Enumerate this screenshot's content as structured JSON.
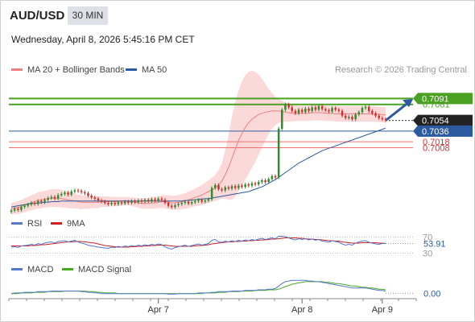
{
  "header": {
    "symbol": "AUD/USD",
    "timeframe": "30 MIN",
    "datetime": "Wednesday, April 8, 2026 5:45:16 PM CET"
  },
  "legend_main": [
    {
      "label": "MA 20 + Bollinger Bands",
      "color": "#f08080"
    },
    {
      "label": "MA 50",
      "color": "#2c5aa0"
    }
  ],
  "research": "Research © 2026 Trading Central",
  "legend_rsi": [
    {
      "label": "RSI",
      "color": "#5577cc"
    },
    {
      "label": "9MA",
      "color": "#cc2222"
    }
  ],
  "legend_macd": [
    {
      "label": "MACD",
      "color": "#5577cc"
    },
    {
      "label": "MACD Signal",
      "color": "#44aa22"
    }
  ],
  "colors": {
    "up": "#2e8b2e",
    "down": "#d03030",
    "bollinger_fill": "#fbd0d0",
    "resistance": "#4aa020",
    "support": "#f07070",
    "pivot": "#2c5aa0",
    "arrow": "#2c5aa0"
  },
  "chart_data": [
    {
      "type": "candlestick",
      "panel": "price",
      "x_labels": [
        "Apr 7",
        "Apr 8",
        "Apr 9"
      ],
      "ylim": [
        0.69,
        0.712
      ],
      "levels": [
        {
          "label": "0.7091",
          "value": 0.7091,
          "style": "resistance",
          "tag": true
        },
        {
          "label": "0.7081",
          "value": 0.7081,
          "style": "resistance",
          "tag": false
        },
        {
          "label": "0.7054",
          "value": 0.7054,
          "style": "current",
          "tag": true
        },
        {
          "label": "0.7036",
          "value": 0.7036,
          "style": "pivot",
          "tag": true
        },
        {
          "label": "0.7018",
          "value": 0.7018,
          "style": "support",
          "tag": false
        },
        {
          "label": "0.7008",
          "value": 0.7008,
          "style": "support",
          "tag": false
        }
      ],
      "closes": [
        0.6902,
        0.6905,
        0.6903,
        0.6908,
        0.691,
        0.6912,
        0.6915,
        0.6913,
        0.6918,
        0.6916,
        0.692,
        0.6923,
        0.6925,
        0.6922,
        0.6928,
        0.693,
        0.6932,
        0.6929,
        0.6934,
        0.6936,
        0.6935,
        0.6933,
        0.6931,
        0.6927,
        0.6924,
        0.6922,
        0.6919,
        0.6917,
        0.6915,
        0.6913,
        0.6915,
        0.6913,
        0.6916,
        0.6914,
        0.6917,
        0.6915,
        0.6918,
        0.6916,
        0.6919,
        0.6917,
        0.692,
        0.6918,
        0.6921,
        0.6919,
        0.6922,
        0.692,
        0.6915,
        0.691,
        0.6908,
        0.6911,
        0.6913,
        0.6915,
        0.6917,
        0.6914,
        0.6916,
        0.6918,
        0.692,
        0.6917,
        0.6919,
        0.6921,
        0.694,
        0.6945,
        0.6938,
        0.6936,
        0.6941,
        0.6939,
        0.6943,
        0.694,
        0.6944,
        0.6942,
        0.6946,
        0.6944,
        0.6948,
        0.6946,
        0.695,
        0.6953,
        0.695,
        0.6955,
        0.696,
        0.6958,
        0.704,
        0.7072,
        0.7081,
        0.7076,
        0.707,
        0.7066,
        0.7072,
        0.7068,
        0.7074,
        0.707,
        0.7076,
        0.7072,
        0.7078,
        0.7073,
        0.7071,
        0.7069,
        0.7075,
        0.7072,
        0.707,
        0.7062,
        0.7058,
        0.706,
        0.7056,
        0.7064,
        0.7068,
        0.7075,
        0.7077,
        0.707,
        0.7066,
        0.7062,
        0.7058,
        0.7056,
        0.7054
      ],
      "ma20": [
        0.6905,
        0.6906,
        0.6907,
        0.6909,
        0.6911,
        0.6913,
        0.6915,
        0.6917,
        0.6919,
        0.692,
        0.6921,
        0.6922,
        0.6923,
        0.6923,
        0.6923,
        0.6922,
        0.6921,
        0.692,
        0.6919,
        0.6918,
        0.6917,
        0.6916,
        0.6916,
        0.6916,
        0.6916,
        0.6916,
        0.6916,
        0.6917,
        0.6917,
        0.6917,
        0.6917,
        0.6917,
        0.6917,
        0.6918,
        0.6918,
        0.6918,
        0.6917,
        0.6916,
        0.6915,
        0.6914,
        0.6914,
        0.6914,
        0.6915,
        0.6915,
        0.6916,
        0.6917,
        0.6917,
        0.6916,
        0.6915,
        0.6915,
        0.6916,
        0.6917,
        0.6918,
        0.692,
        0.6922,
        0.6924,
        0.6926,
        0.6928,
        0.6931,
        0.6934,
        0.6937,
        0.694,
        0.6945,
        0.6952,
        0.6962,
        0.6975,
        0.699,
        0.7005,
        0.702,
        0.7032,
        0.7042,
        0.705,
        0.7056,
        0.706,
        0.7064,
        0.7066,
        0.7068,
        0.7069,
        0.707,
        0.707,
        0.707,
        0.7069,
        0.7068,
        0.7067,
        0.7066,
        0.7066,
        0.7066,
        0.7066,
        0.7066,
        0.7066,
        0.7067,
        0.7067,
        0.7067,
        0.7067,
        0.7066,
        0.7066,
        0.7066,
        0.7065,
        0.7065,
        0.7065,
        0.7065,
        0.7065,
        0.7065,
        0.7065,
        0.7065,
        0.7065,
        0.7065,
        0.7065,
        0.7065,
        0.7065,
        0.7064,
        0.7064,
        0.7063
      ],
      "ma50": [
        0.6908,
        0.6909,
        0.691,
        0.6911,
        0.6912,
        0.6913,
        0.6914,
        0.6914,
        0.6915,
        0.6915,
        0.6916,
        0.6916,
        0.6917,
        0.6917,
        0.6917,
        0.6918,
        0.6918,
        0.6918,
        0.6918,
        0.6918,
        0.6918,
        0.6918,
        0.6918,
        0.6918,
        0.6918,
        0.6918,
        0.6918,
        0.6918,
        0.6918,
        0.6918,
        0.6918,
        0.6918,
        0.6918,
        0.6918,
        0.6918,
        0.6918,
        0.6918,
        0.6918,
        0.6918,
        0.6918,
        0.6918,
        0.6918,
        0.6918,
        0.6918,
        0.6918,
        0.6918,
        0.6918,
        0.6918,
        0.6918,
        0.6918,
        0.6918,
        0.6918,
        0.6919,
        0.6919,
        0.692,
        0.692,
        0.6921,
        0.6921,
        0.6922,
        0.6922,
        0.6923,
        0.6924,
        0.6925,
        0.6926,
        0.6927,
        0.6928,
        0.6929,
        0.693,
        0.6931,
        0.6932,
        0.6933,
        0.6934,
        0.6936,
        0.6938,
        0.694,
        0.6942,
        0.6945,
        0.6948,
        0.6951,
        0.6954,
        0.6958,
        0.6962,
        0.6966,
        0.697,
        0.6974,
        0.6978,
        0.6982,
        0.6985,
        0.6988,
        0.6991,
        0.6994,
        0.6997,
        0.7,
        0.7003,
        0.7005,
        0.7007,
        0.7009,
        0.7011,
        0.7013,
        0.7015,
        0.7017,
        0.7019,
        0.7021,
        0.7023,
        0.7025,
        0.7027,
        0.7029,
        0.7031,
        0.7033,
        0.7035,
        0.7037,
        0.7039,
        0.7041
      ],
      "band_width": [
        0.001,
        0.001,
        0.0011,
        0.0011,
        0.0012,
        0.0012,
        0.0013,
        0.0013,
        0.0014,
        0.0014,
        0.0014,
        0.0015,
        0.0015,
        0.0015,
        0.0015,
        0.0015,
        0.0014,
        0.0014,
        0.0013,
        0.0013,
        0.0012,
        0.0012,
        0.0011,
        0.0011,
        0.001,
        0.001,
        0.001,
        0.0009,
        0.0009,
        0.0009,
        0.0008,
        0.0008,
        0.0008,
        0.0007,
        0.0007,
        0.0007,
        0.0007,
        0.0008,
        0.0008,
        0.0009,
        0.0009,
        0.0009,
        0.001,
        0.001,
        0.001,
        0.0011,
        0.0011,
        0.0012,
        0.0012,
        0.0012,
        0.0012,
        0.0013,
        0.0013,
        0.0014,
        0.0014,
        0.0015,
        0.0016,
        0.0017,
        0.0018,
        0.0019,
        0.002,
        0.0022,
        0.0025,
        0.003,
        0.004,
        0.0055,
        0.007,
        0.008,
        0.0085,
        0.0088,
        0.0088,
        0.0086,
        0.0082,
        0.0076,
        0.0068,
        0.0058,
        0.0048,
        0.0038,
        0.003,
        0.0024,
        0.002,
        0.0018,
        0.0016,
        0.0015,
        0.0014,
        0.0013,
        0.0013,
        0.0013,
        0.0013,
        0.0013,
        0.0013,
        0.0013,
        0.0013,
        0.0013,
        0.0013,
        0.0013,
        0.0013,
        0.0013,
        0.0013,
        0.0013,
        0.0013,
        0.0013,
        0.0013,
        0.0013,
        0.0013,
        0.0013,
        0.0013,
        0.0013,
        0.0013,
        0.0013,
        0.0013,
        0.0013,
        0.0013
      ]
    },
    {
      "type": "line",
      "panel": "rsi",
      "ylim": [
        25,
        75
      ],
      "levels": [
        70,
        30
      ],
      "current_label": "53.91",
      "level_labels": [
        "70",
        "30"
      ],
      "rsi": [
        45,
        46,
        44,
        48,
        49,
        50,
        52,
        50,
        54,
        52,
        55,
        57,
        58,
        55,
        59,
        60,
        61,
        58,
        60,
        62,
        58,
        55,
        53,
        50,
        48,
        47,
        45,
        44,
        43,
        42,
        45,
        44,
        47,
        45,
        48,
        46,
        49,
        47,
        50,
        48,
        51,
        49,
        52,
        50,
        53,
        51,
        46,
        42,
        40,
        44,
        46,
        48,
        50,
        47,
        49,
        51,
        53,
        50,
        52,
        54,
        62,
        64,
        58,
        57,
        60,
        58,
        61,
        59,
        62,
        60,
        63,
        61,
        64,
        62,
        65,
        67,
        64,
        66,
        68,
        66,
        72,
        72,
        71,
        68,
        65,
        63,
        66,
        64,
        66,
        63,
        65,
        62,
        64,
        60,
        59,
        57,
        61,
        59,
        57,
        53,
        50,
        52,
        50,
        55,
        58,
        60,
        61,
        57,
        55,
        53,
        52,
        54,
        54
      ],
      "ma9": [
        48,
        48,
        48,
        48,
        48,
        48,
        49,
        49,
        50,
        51,
        51,
        52,
        53,
        54,
        55,
        56,
        57,
        58,
        58,
        59,
        59,
        59,
        58,
        57,
        56,
        55,
        53,
        51,
        49,
        48,
        47,
        46,
        45,
        45,
        45,
        45,
        46,
        46,
        47,
        47,
        48,
        48,
        49,
        49,
        50,
        50,
        50,
        49,
        48,
        47,
        47,
        47,
        47,
        47,
        47,
        48,
        49,
        49,
        50,
        51,
        53,
        54,
        55,
        56,
        57,
        58,
        58,
        59,
        59,
        60,
        60,
        61,
        61,
        62,
        62,
        63,
        63,
        64,
        65,
        65,
        66,
        67,
        68,
        68,
        68,
        68,
        67,
        67,
        66,
        65,
        65,
        64,
        64,
        63,
        62,
        61,
        61,
        60,
        60,
        58,
        57,
        56,
        55,
        55,
        55,
        56,
        56,
        56,
        56,
        56,
        55,
        55,
        54
      ]
    },
    {
      "type": "line",
      "panel": "macd",
      "ylim": [
        -0.0003,
        0.0024
      ],
      "zero_label": "0.00",
      "macd": [
        0.0,
        0.0001,
        0.0001,
        0.0001,
        0.0002,
        0.0002,
        0.0002,
        0.0002,
        0.0003,
        0.0003,
        0.0003,
        0.0003,
        0.0004,
        0.0004,
        0.0004,
        0.0004,
        0.0004,
        0.0004,
        0.0004,
        0.0004,
        0.0004,
        0.0003,
        0.0003,
        0.0002,
        0.0002,
        0.0001,
        0.0001,
        0.0,
        0.0,
        0.0,
        0.0,
        0.0,
        0.0,
        0.0,
        0.0,
        0.0,
        0.0,
        0.0,
        0.0,
        0.0,
        0.0,
        0.0,
        0.0,
        0.0,
        0.0,
        0.0,
        0.0,
        -0.0001,
        -0.0001,
        -0.0001,
        0.0,
        0.0,
        0.0,
        0.0,
        0.0,
        0.0,
        0.0001,
        0.0001,
        0.0001,
        0.0001,
        0.0002,
        0.0002,
        0.0003,
        0.0003,
        0.0003,
        0.0003,
        0.0004,
        0.0004,
        0.0004,
        0.0004,
        0.0005,
        0.0005,
        0.0005,
        0.0005,
        0.0006,
        0.0006,
        0.0006,
        0.0007,
        0.0007,
        0.0008,
        0.0012,
        0.0016,
        0.0019,
        0.002,
        0.0021,
        0.0021,
        0.0021,
        0.0021,
        0.0021,
        0.002,
        0.002,
        0.0019,
        0.0019,
        0.0018,
        0.0017,
        0.0016,
        0.0015,
        0.0014,
        0.0013,
        0.0012,
        0.0011,
        0.001,
        0.0009,
        0.0009,
        0.0009,
        0.0009,
        0.0009,
        0.0008,
        0.0007,
        0.0006,
        0.0005,
        0.0005,
        0.0004
      ],
      "signal": [
        0.0,
        0.0,
        0.0,
        0.0001,
        0.0001,
        0.0001,
        0.0001,
        0.0002,
        0.0002,
        0.0002,
        0.0002,
        0.0003,
        0.0003,
        0.0003,
        0.0003,
        0.0003,
        0.0004,
        0.0004,
        0.0004,
        0.0004,
        0.0004,
        0.0004,
        0.0004,
        0.0003,
        0.0003,
        0.0003,
        0.0002,
        0.0002,
        0.0001,
        0.0001,
        0.0001,
        0.0001,
        0.0,
        0.0,
        0.0,
        0.0,
        0.0,
        0.0,
        0.0,
        0.0,
        0.0,
        0.0,
        0.0,
        0.0,
        0.0,
        0.0,
        0.0,
        0.0,
        0.0,
        0.0,
        0.0,
        0.0,
        0.0,
        0.0,
        0.0,
        0.0,
        0.0,
        0.0,
        0.0001,
        0.0001,
        0.0001,
        0.0001,
        0.0002,
        0.0002,
        0.0002,
        0.0003,
        0.0003,
        0.0003,
        0.0003,
        0.0004,
        0.0004,
        0.0004,
        0.0004,
        0.0005,
        0.0005,
        0.0005,
        0.0005,
        0.0006,
        0.0006,
        0.0006,
        0.0007,
        0.0009,
        0.0011,
        0.0013,
        0.0015,
        0.0016,
        0.0017,
        0.0018,
        0.0019,
        0.0019,
        0.0019,
        0.0019,
        0.0019,
        0.0019,
        0.0018,
        0.0018,
        0.0017,
        0.0016,
        0.0016,
        0.0015,
        0.0014,
        0.0013,
        0.0012,
        0.0012,
        0.0011,
        0.001,
        0.001,
        0.0009,
        0.0009,
        0.0008,
        0.0007,
        0.0007,
        0.0006
      ]
    }
  ]
}
